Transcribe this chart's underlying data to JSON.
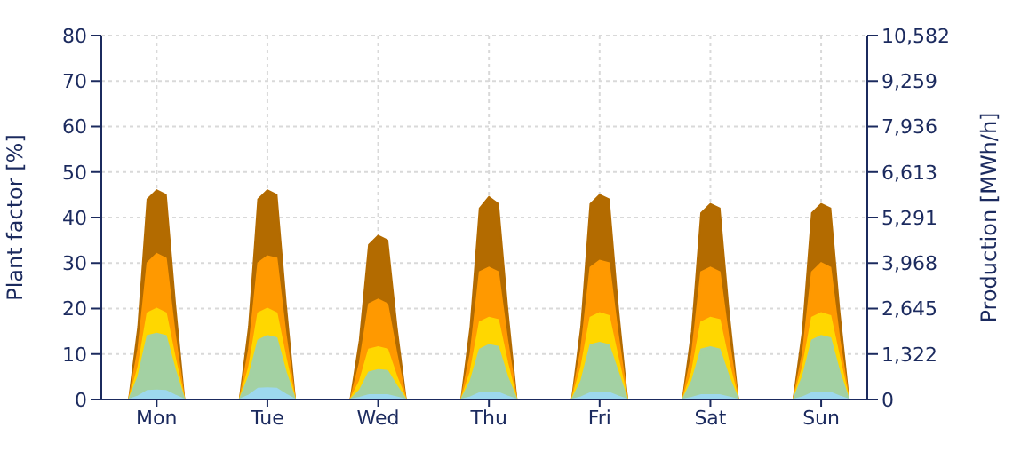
{
  "chart_data": {
    "type": "area",
    "ylabel": "Plant factor [%]",
    "y2label": "Production [MWh/h]",
    "categories": [
      null,
      null,
      null,
      null,
      null,
      null,
      "Mon",
      null,
      null,
      null,
      null,
      null,
      null,
      null,
      null,
      null,
      null,
      null,
      "Tue",
      null,
      null,
      null,
      null,
      null,
      null,
      null,
      null,
      null,
      null,
      null,
      "Wed",
      null,
      null,
      null,
      null,
      null,
      null,
      null,
      null,
      null,
      null,
      null,
      "Thu",
      null,
      null,
      null,
      null,
      null,
      null,
      null,
      null,
      null,
      null,
      null,
      "Fri",
      null,
      null,
      null,
      null,
      null,
      null,
      null,
      null,
      null,
      null,
      null,
      "Sat",
      null,
      null,
      null,
      null,
      null,
      null,
      null,
      null,
      null,
      null,
      null,
      "Sun",
      null,
      null,
      null,
      null,
      null
    ],
    "series": [
      {
        "color": "#b36b00",
        "values": [
          0,
          0,
          0,
          0,
          16,
          44,
          46,
          45,
          21,
          0,
          0,
          0,
          0,
          0,
          0,
          0,
          16,
          44,
          46,
          45,
          21,
          0,
          0,
          0,
          0,
          0,
          0,
          0,
          13,
          34,
          36,
          35,
          16,
          0,
          0,
          0,
          0,
          0,
          0,
          0,
          16,
          42,
          44.5,
          43,
          20,
          0,
          0,
          0,
          0,
          0,
          0,
          0,
          16,
          43,
          45,
          44,
          20,
          0,
          0,
          0,
          0,
          0,
          0,
          0,
          15,
          41,
          43,
          42,
          19,
          0,
          0,
          0,
          0,
          0,
          0,
          0,
          15,
          41,
          43,
          42,
          19,
          0,
          0,
          0
        ]
      },
      {
        "color": "#ff9900",
        "values": [
          0,
          0,
          0,
          0,
          11,
          30,
          32,
          31,
          14,
          0,
          0,
          0,
          0,
          0,
          0,
          0,
          11,
          30,
          31.5,
          31,
          14,
          0,
          0,
          0,
          0,
          0,
          0,
          0,
          8,
          21,
          22,
          21,
          10,
          0,
          0,
          0,
          0,
          0,
          0,
          0,
          10,
          28,
          29,
          28,
          13,
          0,
          0,
          0,
          0,
          0,
          0,
          0,
          11,
          29,
          30.5,
          30,
          14,
          0,
          0,
          0,
          0,
          0,
          0,
          0,
          10,
          28,
          29,
          28,
          13,
          0,
          0,
          0,
          0,
          0,
          0,
          0,
          10,
          28,
          30,
          29,
          13,
          0,
          0,
          0
        ]
      },
      {
        "color": "#ffd700",
        "values": [
          0,
          0,
          0,
          0,
          7,
          19,
          20,
          19,
          9,
          0,
          0,
          0,
          0,
          0,
          0,
          0,
          7,
          19,
          20,
          19,
          9,
          0,
          0,
          0,
          0,
          0,
          0,
          0,
          4,
          11,
          11.5,
          11,
          5,
          0,
          0,
          0,
          0,
          0,
          0,
          0,
          6,
          17,
          18,
          17.5,
          8,
          0,
          0,
          0,
          0,
          0,
          0,
          0,
          7,
          18,
          19,
          18.4,
          9,
          0,
          0,
          0,
          0,
          0,
          0,
          0,
          6,
          17,
          18,
          17.5,
          8,
          0,
          0,
          0,
          0,
          0,
          0,
          0,
          7,
          18,
          19,
          18.4,
          9,
          0,
          0,
          0
        ]
      },
      {
        "color": "#a3d1a3",
        "values": [
          0,
          0,
          0,
          0,
          5,
          14,
          14.5,
          14,
          6.5,
          0,
          0,
          0,
          0,
          0,
          0,
          0,
          5,
          13,
          14,
          13.5,
          6,
          0,
          0,
          0,
          0,
          0,
          0,
          0,
          2,
          6,
          6.5,
          6.3,
          3,
          0,
          0,
          0,
          0,
          0,
          0,
          0,
          4,
          11,
          12,
          11.6,
          5,
          0,
          0,
          0,
          0,
          0,
          0,
          0,
          4,
          12,
          12.5,
          12,
          6,
          0,
          0,
          0,
          0,
          0,
          0,
          0,
          4,
          11,
          11.5,
          11,
          5,
          0,
          0,
          0,
          0,
          0,
          0,
          0,
          5,
          13,
          14,
          13.5,
          6,
          0,
          0,
          0
        ]
      },
      {
        "color": "#9dd8ee",
        "values": [
          0,
          0,
          0,
          0,
          0.7,
          1.9,
          2,
          1.9,
          0.9,
          0,
          0,
          0,
          0,
          0,
          0,
          0,
          0.9,
          2.4,
          2.5,
          2.4,
          1.1,
          0,
          0,
          0,
          0,
          0,
          0,
          0,
          0.4,
          1,
          1,
          1,
          0.5,
          0,
          0,
          0,
          0,
          0,
          0,
          0,
          0.5,
          1.4,
          1.5,
          1.5,
          0.7,
          0,
          0,
          0,
          0,
          0,
          0,
          0,
          0.5,
          1.4,
          1.5,
          1.5,
          0.7,
          0,
          0,
          0,
          0,
          0,
          0,
          0,
          0.4,
          1,
          1,
          1,
          0.5,
          0,
          0,
          0,
          0,
          0,
          0,
          0,
          0.5,
          1.4,
          1.5,
          1.5,
          0.7,
          0,
          0,
          0
        ]
      }
    ],
    "ylim": [
      0,
      80
    ],
    "yticks": [
      0,
      10,
      20,
      30,
      40,
      50,
      60,
      70,
      80
    ],
    "y2lim": [
      0,
      10582
    ],
    "y2ticks": [
      0,
      {
        "value": 1322,
        "label": "1,322"
      },
      {
        "value": 2645,
        "label": "2,645"
      },
      {
        "value": 3968,
        "label": "3,968"
      },
      {
        "value": 5291,
        "label": "5,291"
      },
      {
        "value": 6613,
        "label": "6,613"
      },
      {
        "value": 7936,
        "label": "7,936"
      },
      {
        "value": 9259,
        "label": "9,259"
      },
      {
        "value": 10582,
        "label": "10,582"
      }
    ],
    "grid": true
  }
}
